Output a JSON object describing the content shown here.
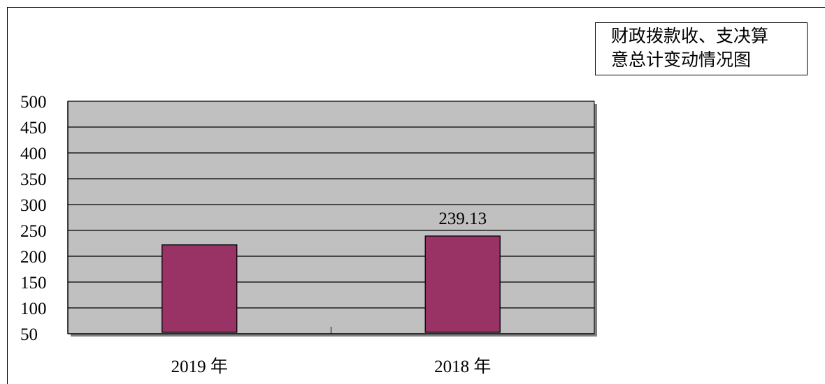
{
  "chart_data": {
    "type": "bar",
    "title_lines": [
      "财政拨款收、支决算",
      "意总计变动情况图"
    ],
    "categories": [
      "2019 年",
      "2018 年"
    ],
    "values": [
      222,
      239.13
    ],
    "data_labels": [
      "",
      "239.13"
    ],
    "yticks": [
      50,
      100,
      150,
      200,
      250,
      300,
      350,
      400,
      450,
      500
    ],
    "ylim": [
      50,
      500
    ],
    "grid": true,
    "legend": "top-right",
    "colors": {
      "bar": "#993366",
      "plot_bg": "#c0c0c0",
      "grid": "#000000"
    }
  }
}
